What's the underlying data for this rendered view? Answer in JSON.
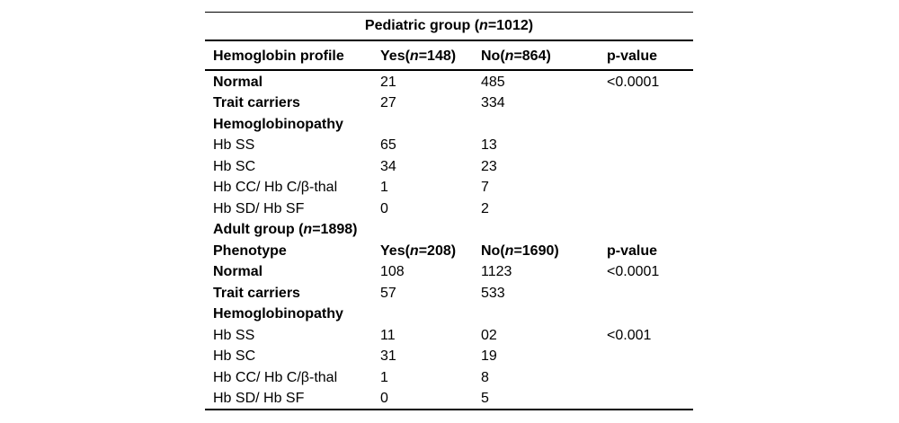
{
  "page": {
    "background_color": "#ffffff",
    "text_color": "#000000",
    "rule_color": "#000000"
  },
  "table": {
    "title": {
      "pre": "Pediatric group (",
      "n": "n",
      "post": "=1012)"
    },
    "header": {
      "label": "Hemoglobin profile",
      "yes": {
        "pre": "Yes(",
        "n": "n",
        "post": "=148)"
      },
      "no": {
        "pre": "No(",
        "n": "n",
        "post": "=864)"
      },
      "p": "p-value"
    },
    "rows": [
      {
        "label": "Normal",
        "bold_label": true,
        "yes": "21",
        "no": "485",
        "p": "<0.0001"
      },
      {
        "label": "Trait carriers",
        "bold_label": true,
        "yes": "27",
        "no": "334",
        "p": ""
      },
      {
        "label": "Hemoglobinopathy",
        "bold_label": true,
        "yes": "",
        "no": "",
        "p": ""
      },
      {
        "label": "Hb SS",
        "yes": "65",
        "no": "13",
        "p": ""
      },
      {
        "label": "Hb SC",
        "yes": "34",
        "no": "23",
        "p": ""
      },
      {
        "label": "Hb CC/ Hb C/β-thal",
        "yes": "1",
        "no": "7",
        "p": ""
      },
      {
        "label": "Hb SD/ Hb SF",
        "yes": "0",
        "no": "2",
        "p": ""
      },
      {
        "label": "Adult group (|n|=1898)",
        "bold_label": true,
        "yes": "",
        "no": "",
        "p": ""
      },
      {
        "label": "Phenotype",
        "bold_label": true,
        "bold_all": true,
        "yes": "Yes(|n|=208)",
        "no": "No(|n|=1690)",
        "p": "p-value"
      },
      {
        "label": "Normal",
        "bold_label": true,
        "yes": "108",
        "no": "1123",
        "p": "<0.0001"
      },
      {
        "label": "Trait carriers",
        "bold_label": true,
        "yes": "57",
        "no": "533",
        "p": ""
      },
      {
        "label": "Hemoglobinopathy",
        "bold_label": true,
        "yes": "",
        "no": "",
        "p": ""
      },
      {
        "label": "Hb SS",
        "yes": "11",
        "no": "02",
        "p": "<0.001"
      },
      {
        "label": "Hb SC",
        "yes": "31",
        "no": "19",
        "p": ""
      },
      {
        "label": "Hb CC/ Hb C/β-thal",
        "yes": "1",
        "no": "8",
        "p": ""
      },
      {
        "label": "Hb SD/ Hb SF",
        "yes": "0",
        "no": "5",
        "p": ""
      }
    ]
  }
}
